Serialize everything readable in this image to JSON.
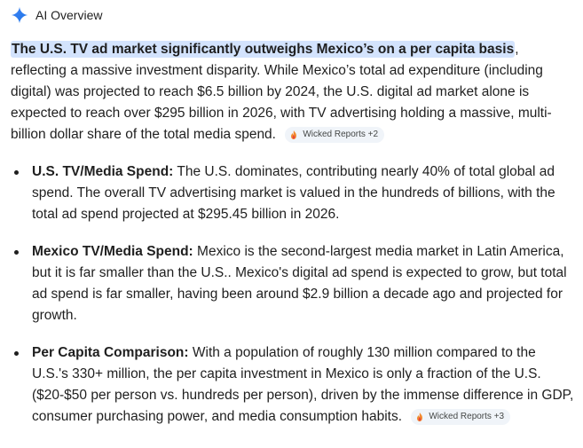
{
  "header": {
    "title": "AI Overview",
    "icon": "sparkle-icon",
    "icon_color": "#4285f4"
  },
  "intro": {
    "highlight": "The U.S. TV ad market significantly outweighs Mexico’s on a per capita basis",
    "rest": ", reflecting a massive investment disparity. While Mexico’s total ad expenditure (including digital) was projected to reach $6.5 billion by 2024, the U.S. digital ad market alone is expected to reach over $295 billion in 2026, with TV advertising holding a massive, multi-billion dollar share of the total media spend.",
    "source_chip": "Wicked Reports +2"
  },
  "bullets": [
    {
      "title": "U.S. TV/Media Spend:",
      "text": " The U.S. dominates, contributing nearly 40% of total global ad spend. The overall TV advertising market is valued in the hundreds of billions, with the total ad spend projected at $295.45 billion in 2026."
    },
    {
      "title": "Mexico TV/Media Spend:",
      "text": " Mexico is the second-largest media market in Latin America, but it is far smaller than the U.S.. Mexico's digital ad spend is expected to grow, but total ad spend is far smaller, having been around $2.9 billion a decade ago and projected for growth."
    },
    {
      "title": "Per Capita Comparison:",
      "text": " With a population of roughly 130 million compared to the U.S.'s 330+ million, the per capita investment in Mexico is only a fraction of the U.S. ($20-$50 per person vs. hundreds per person), driven by the immense difference in GDP, consumer purchasing power, and media consumption habits.",
      "source_chip": "Wicked Reports +3"
    }
  ]
}
